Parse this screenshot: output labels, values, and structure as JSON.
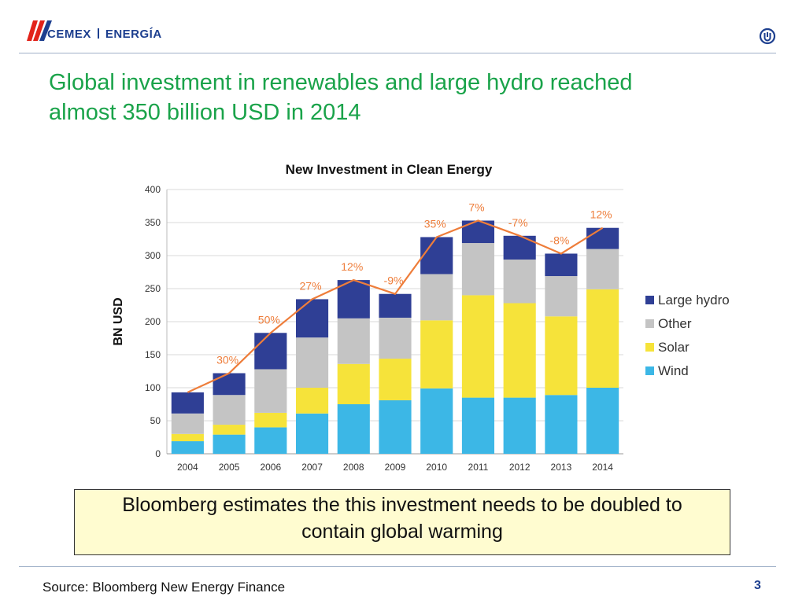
{
  "header": {
    "brand_name": "CEMEX",
    "brand_division": "ENERGÍA",
    "logo_icon": "cemex-logo-icon",
    "corner_icon": "power-symbol-icon"
  },
  "slide": {
    "title_line1": "Global investment in renewables and large hydro reached",
    "title_line2": "almost 350 billion USD in 2014",
    "note_line1": "Bloomberg estimates the this investment needs to be doubled to",
    "note_line2": "contain global warming",
    "source": "Source: Bloomberg New Energy Finance",
    "page_number": "3"
  },
  "colors": {
    "accent_green": "#1aa34a",
    "brand_blue": "#1d3f8f",
    "brand_red": "#e2231a",
    "wind": "#3cb7e6",
    "solar": "#f6e33a",
    "other": "#c4c4c4",
    "large_hydro": "#2f3f95",
    "growth_line": "#ee7d3a"
  },
  "chart_data": {
    "type": "bar",
    "stacked": true,
    "title": "New Investment in Clean Energy",
    "ylabel": "BN USD",
    "xlabel": "",
    "ylim": [
      0,
      400
    ],
    "yticks": [
      0,
      50,
      100,
      150,
      200,
      250,
      300,
      350,
      400
    ],
    "grid": true,
    "legend_position": "right",
    "categories": [
      "2004",
      "2005",
      "2006",
      "2007",
      "2008",
      "2009",
      "2010",
      "2011",
      "2012",
      "2013",
      "2014"
    ],
    "series": [
      {
        "name": "Wind",
        "color": "#3cb7e6",
        "values": [
          19,
          29,
          40,
          61,
          75,
          81,
          99,
          85,
          85,
          89,
          100
        ]
      },
      {
        "name": "Solar",
        "color": "#f6e33a",
        "values": [
          11,
          15,
          22,
          39,
          61,
          63,
          103,
          155,
          143,
          119,
          149
        ]
      },
      {
        "name": "Other",
        "color": "#c4c4c4",
        "values": [
          31,
          45,
          66,
          76,
          69,
          62,
          70,
          79,
          66,
          61,
          61
        ]
      },
      {
        "name": "Large hydro",
        "color": "#2f3f95",
        "values": [
          32,
          33,
          55,
          58,
          58,
          36,
          56,
          34,
          36,
          34,
          32
        ]
      }
    ],
    "growth_line": {
      "color": "#ee7d3a",
      "values": [
        93,
        122,
        183,
        234,
        263,
        242,
        328,
        353,
        330,
        303,
        342
      ],
      "labels": [
        "",
        "30%",
        "50%",
        "27%",
        "12%",
        "-9%",
        "35%",
        "7%",
        "-7%",
        "-8%",
        "12%"
      ]
    }
  }
}
